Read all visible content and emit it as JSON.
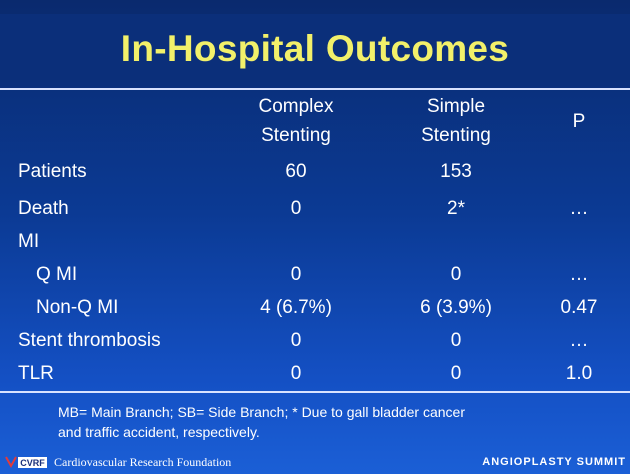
{
  "title": "In-Hospital Outcomes",
  "headers": {
    "col1_line1": "Complex",
    "col1_line2": "Stenting",
    "col2_line1": "Simple",
    "col2_line2": "Stenting",
    "col3": "P"
  },
  "rows": [
    {
      "label": "Patients",
      "complex": "60",
      "simple": "153",
      "p": ""
    },
    {
      "label": "Death",
      "complex": "0",
      "simple": "2*",
      "p": "…"
    },
    {
      "label": "MI",
      "complex": "",
      "simple": "",
      "p": ""
    },
    {
      "label": "Q MI",
      "complex": "0",
      "simple": "0",
      "p": "…"
    },
    {
      "label": "Non-Q MI",
      "complex": "4 (6.7%)",
      "simple": "6 (3.9%)",
      "p": "0.47"
    },
    {
      "label": "Stent thrombosis",
      "complex": "0",
      "simple": "0",
      "p": "…"
    },
    {
      "label": "TLR",
      "complex": "0",
      "simple": "0",
      "p": "1.0"
    }
  ],
  "footnote_line1": "MB= Main Branch; SB= Side Branch; * Due to gall bladder cancer",
  "footnote_line2": "and traffic accident, respectively.",
  "footer": {
    "logo_text": "CVRF",
    "organization": "Cardiovascular Research Foundation",
    "event": "ANGIOPLASTY SUMMIT"
  },
  "colors": {
    "title": "#f2f06a",
    "background": "#0b3a94",
    "text": "#ffffff"
  }
}
